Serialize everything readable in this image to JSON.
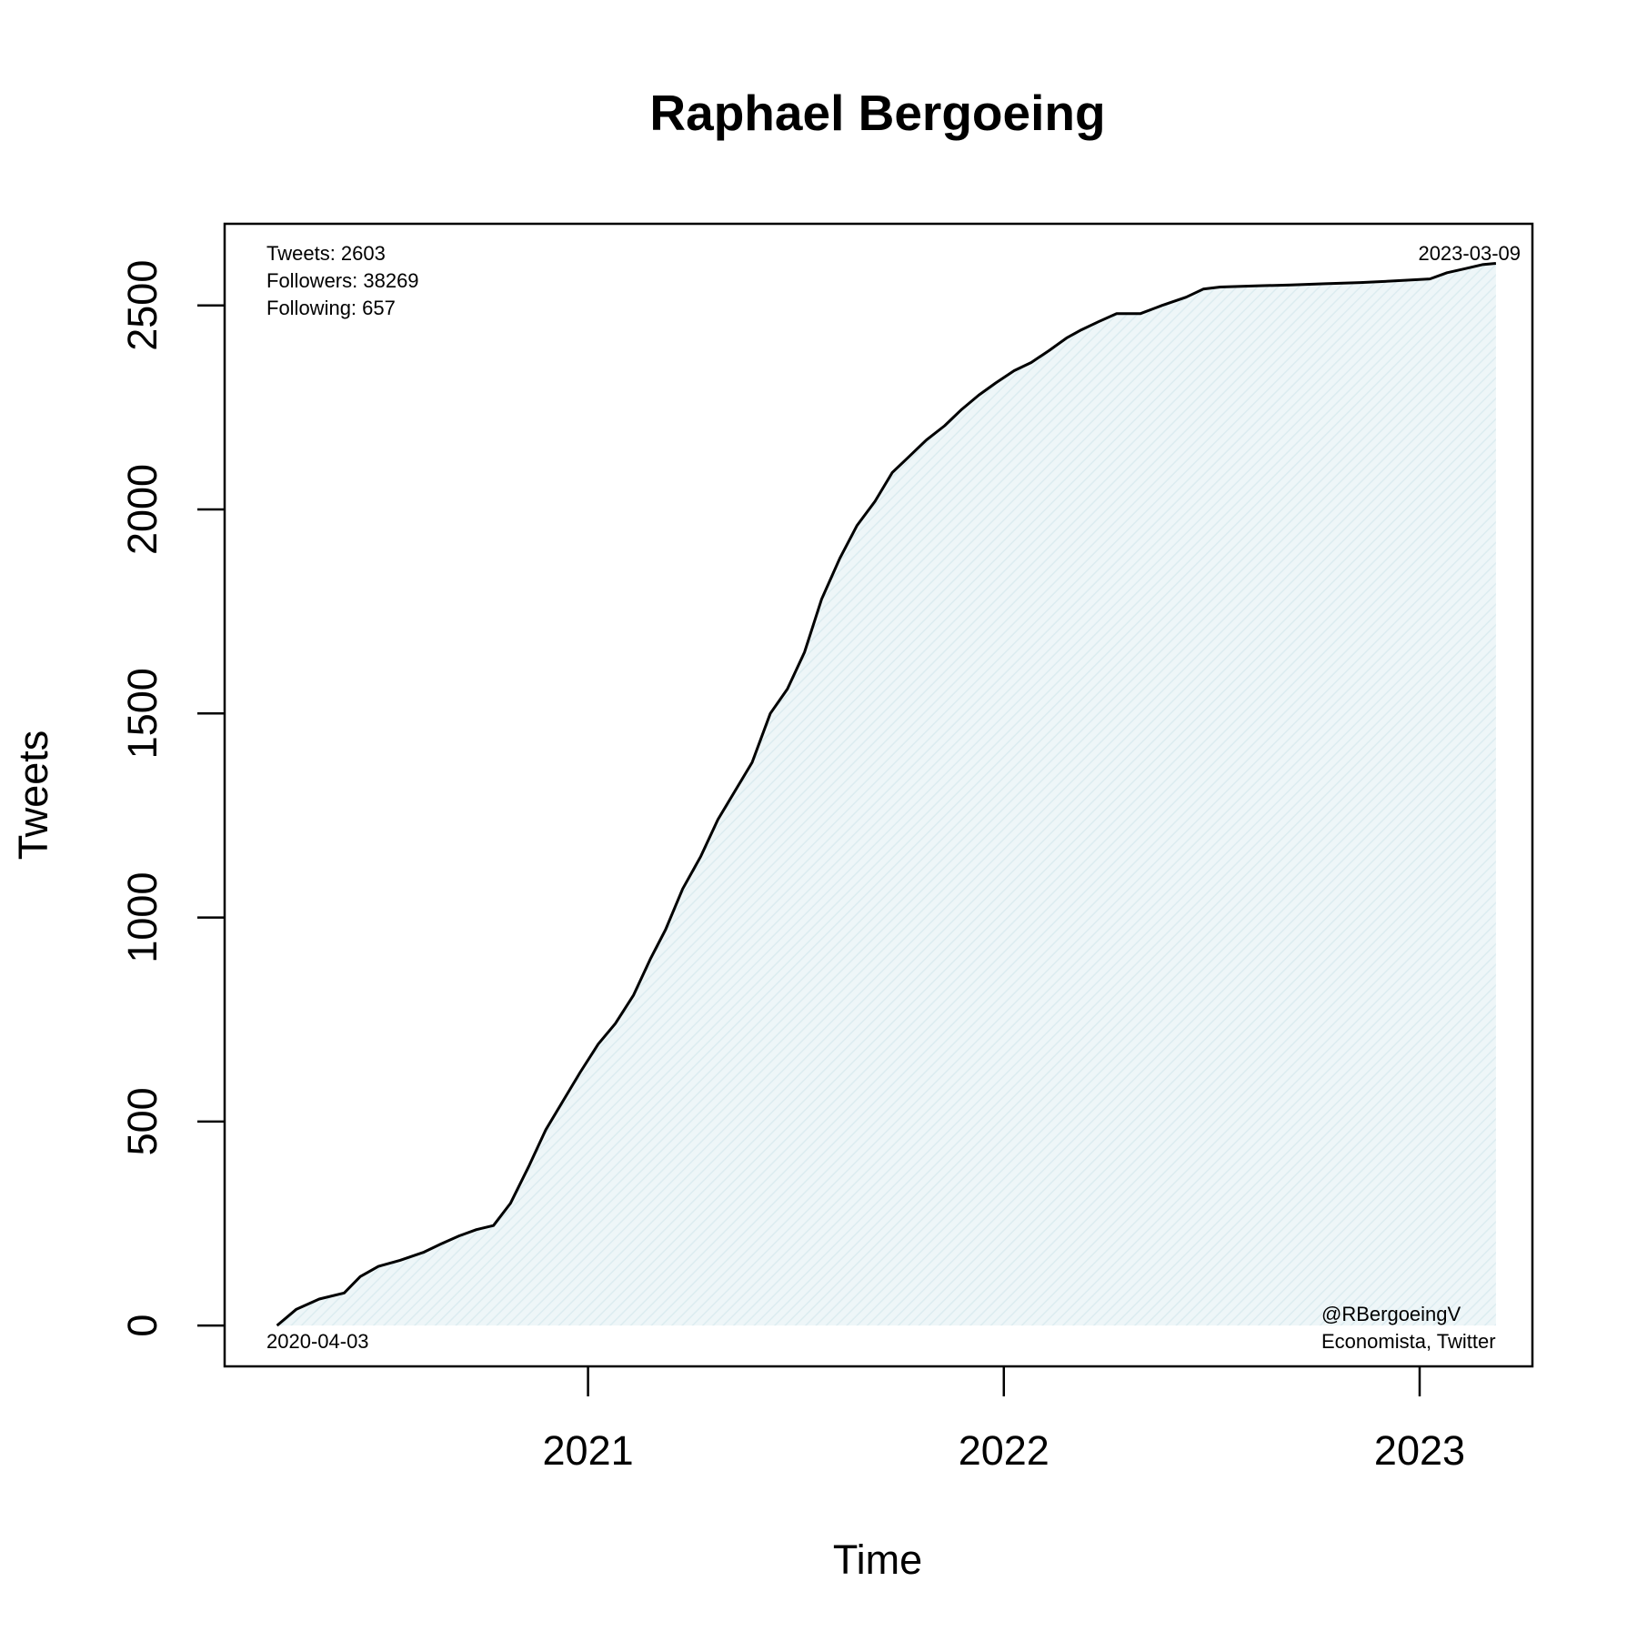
{
  "chart_data": {
    "type": "area",
    "title": "Raphael Bergoeing",
    "xlabel": "Time",
    "ylabel": "Tweets",
    "x_ticks": [
      "2021",
      "2022",
      "2023"
    ],
    "y_ticks": [
      "0",
      "500",
      "1000",
      "1500",
      "2000",
      "2500"
    ],
    "ylim": [
      -100,
      2700
    ],
    "xlim": [
      "2020-02-17",
      "2023-04-10"
    ],
    "grid": false,
    "fill_color": "#e6f2f5",
    "line_color": "#000000",
    "stats": {
      "tweets": "Tweets: 2603",
      "followers": "Followers: 38269",
      "following": "Following: 657"
    },
    "start_label": "2020-04-03",
    "end_label": "2023-03-09",
    "handle": "@RBergoeingV",
    "description": "Economista, Twitter",
    "series": [
      {
        "x": [
          "2020-04-03",
          "2020-04-20",
          "2020-05-10",
          "2020-06-01",
          "2020-06-15",
          "2020-07-01",
          "2020-07-20",
          "2020-08-10",
          "2020-08-25",
          "2020-09-10",
          "2020-09-25",
          "2020-10-10",
          "2020-10-25",
          "2020-11-10",
          "2020-11-25",
          "2020-12-10",
          "2020-12-25",
          "2021-01-10",
          "2021-01-25",
          "2021-02-10",
          "2021-02-25",
          "2021-03-10",
          "2021-03-25",
          "2021-04-10",
          "2021-04-25",
          "2021-05-10",
          "2021-05-25",
          "2021-06-10",
          "2021-06-25",
          "2021-07-10",
          "2021-07-25",
          "2021-08-10",
          "2021-08-25",
          "2021-09-10",
          "2021-09-25",
          "2021-10-10",
          "2021-10-25",
          "2021-11-10",
          "2021-11-25",
          "2021-12-10",
          "2021-12-25",
          "2022-01-10",
          "2022-01-25",
          "2022-02-10",
          "2022-02-25",
          "2022-03-10",
          "2022-03-25",
          "2022-04-10",
          "2022-05-01",
          "2022-05-20",
          "2022-06-10",
          "2022-06-25",
          "2022-07-10",
          "2022-08-10",
          "2022-09-10",
          "2022-10-10",
          "2022-11-10",
          "2022-12-10",
          "2023-01-10",
          "2023-01-25",
          "2023-02-10",
          "2023-02-25",
          "2023-03-09"
        ],
        "y": [
          0,
          40,
          65,
          80,
          120,
          145,
          160,
          180,
          200,
          220,
          235,
          245,
          300,
          390,
          480,
          550,
          620,
          690,
          740,
          810,
          900,
          970,
          1070,
          1150,
          1240,
          1310,
          1380,
          1500,
          1560,
          1650,
          1780,
          1880,
          1960,
          2020,
          2090,
          2130,
          2170,
          2205,
          2245,
          2280,
          2310,
          2340,
          2360,
          2390,
          2420,
          2440,
          2460,
          2480,
          2480,
          2500,
          2520,
          2540,
          2545,
          2548,
          2550,
          2553,
          2556,
          2560,
          2565,
          2580,
          2590,
          2600,
          2603
        ]
      }
    ]
  }
}
